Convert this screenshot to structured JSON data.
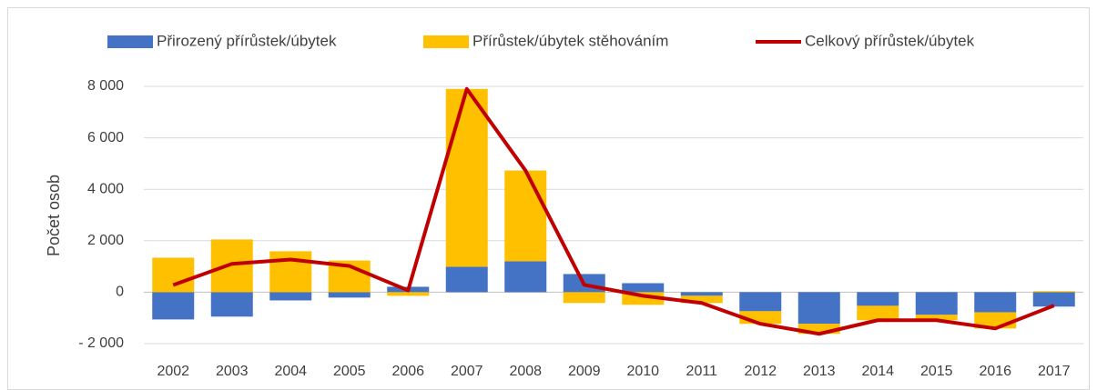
{
  "chart_data": {
    "type": "bar",
    "y_label": "Počet osob",
    "categories": [
      "2002",
      "2003",
      "2004",
      "2005",
      "2006",
      "2007",
      "2008",
      "2009",
      "2010",
      "2011",
      "2012",
      "2013",
      "2014",
      "2015",
      "2016",
      "2017"
    ],
    "series": [
      {
        "name": "Přirozený přírůstek/úbytek",
        "type": "bar",
        "color": "#4472c4",
        "values": [
          -1060,
          -950,
          -320,
          -210,
          210,
          990,
          1200,
          705,
          350,
          -140,
          -740,
          -1230,
          -530,
          -880,
          -780,
          -560
        ]
      },
      {
        "name": "Přírůstek/úbytek stěhováním",
        "type": "bar",
        "color": "#ffc000",
        "values": [
          1340,
          2050,
          1590,
          1230,
          -140,
          6910,
          3530,
          -420,
          -490,
          -280,
          -490,
          -390,
          -560,
          -210,
          -630,
          40
        ]
      },
      {
        "name": "Celkový přírůstek/úbytek",
        "type": "line",
        "color": "#c00000",
        "values": [
          280,
          1100,
          1270,
          1020,
          70,
          7900,
          4730,
          285,
          -140,
          -420,
          -1230,
          -1620,
          -1090,
          -1090,
          -1410,
          -520
        ]
      }
    ],
    "stacked": true,
    "ylim": [
      -2000,
      8000
    ],
    "yticks": [
      {
        "value": -2000,
        "label": "- 2 000"
      },
      0,
      {
        "value": 2000,
        "label": "2 000"
      },
      {
        "value": 4000,
        "label": "4 000"
      },
      {
        "value": 6000,
        "label": "6 000"
      },
      {
        "value": 8000,
        "label": "8 000"
      }
    ],
    "grid": true,
    "legend": "top"
  }
}
